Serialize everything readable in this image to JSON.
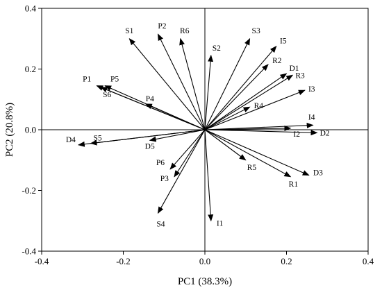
{
  "chart_data": {
    "type": "scatter",
    "subtype": "pca-biplot-loadings",
    "xlabel": "PC1 (38.3%)",
    "ylabel": "PC2 (20.8%)",
    "xlim": [
      -0.4,
      0.4
    ],
    "ylim": [
      -0.4,
      0.4
    ],
    "xticks": [
      "-0.4",
      "-0.2",
      "0.0",
      "0.2",
      "0.4"
    ],
    "yticks": [
      "0.4",
      "0.2",
      "0.0",
      "-0.2",
      "-0.4"
    ],
    "reference_lines": {
      "x": 0,
      "y": 0
    },
    "grid": false,
    "legend": "none",
    "vectors": [
      {
        "label": "S1",
        "x": -0.185,
        "y": 0.3
      },
      {
        "label": "P2",
        "x": -0.115,
        "y": 0.315
      },
      {
        "label": "R6",
        "x": -0.06,
        "y": 0.3
      },
      {
        "label": "S2",
        "x": 0.015,
        "y": 0.245
      },
      {
        "label": "S3",
        "x": 0.11,
        "y": 0.3
      },
      {
        "label": "I5",
        "x": 0.175,
        "y": 0.275
      },
      {
        "label": "R2",
        "x": 0.155,
        "y": 0.215
      },
      {
        "label": "D1",
        "x": 0.2,
        "y": 0.185
      },
      {
        "label": "R3",
        "x": 0.215,
        "y": 0.18
      },
      {
        "label": "I3",
        "x": 0.245,
        "y": 0.13
      },
      {
        "label": "R4",
        "x": 0.11,
        "y": 0.075
      },
      {
        "label": "I4",
        "x": 0.265,
        "y": 0.015
      },
      {
        "label": "I2",
        "x": 0.21,
        "y": 0.005
      },
      {
        "label": "D2",
        "x": 0.275,
        "y": -0.01
      },
      {
        "label": "P1",
        "x": -0.265,
        "y": 0.145
      },
      {
        "label": "P5",
        "x": -0.245,
        "y": 0.145
      },
      {
        "label": "S6",
        "x": -0.255,
        "y": 0.14
      },
      {
        "label": "P4",
        "x": -0.145,
        "y": 0.085
      },
      {
        "label": "D4",
        "x": -0.31,
        "y": -0.05
      },
      {
        "label": "S5",
        "x": -0.28,
        "y": -0.045
      },
      {
        "label": "D5",
        "x": -0.135,
        "y": -0.035
      },
      {
        "label": "P6",
        "x": -0.085,
        "y": -0.13
      },
      {
        "label": "P3",
        "x": -0.075,
        "y": -0.155
      },
      {
        "label": "S4",
        "x": -0.115,
        "y": -0.275
      },
      {
        "label": "I1",
        "x": 0.015,
        "y": -0.3
      },
      {
        "label": "R5",
        "x": 0.1,
        "y": -0.1
      },
      {
        "label": "R1",
        "x": 0.21,
        "y": -0.155
      },
      {
        "label": "D3",
        "x": 0.255,
        "y": -0.15
      }
    ],
    "colors": {
      "ink": "#000000",
      "background": "#ffffff"
    }
  }
}
